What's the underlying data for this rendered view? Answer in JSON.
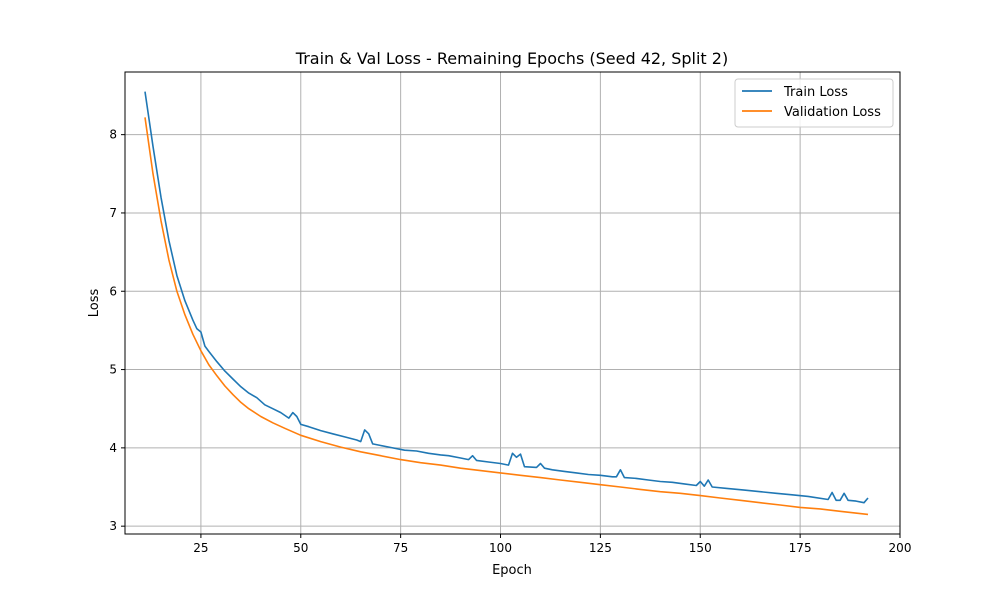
{
  "chart_data": {
    "type": "line",
    "title": "Train & Val Loss - Remaining Epochs (Seed 42, Split 2)",
    "xlabel": "Epoch",
    "ylabel": "Loss",
    "xlim": [
      6,
      200
    ],
    "ylim": [
      2.9,
      8.8
    ],
    "xticks": [
      25,
      50,
      75,
      100,
      125,
      150,
      175,
      200
    ],
    "yticks": [
      3,
      4,
      5,
      6,
      7,
      8
    ],
    "grid": true,
    "legend_position": "top-right",
    "series": [
      {
        "name": "Train Loss",
        "color": "#1f77b4",
        "points": [
          [
            11,
            8.55
          ],
          [
            13,
            7.85
          ],
          [
            15,
            7.2
          ],
          [
            17,
            6.65
          ],
          [
            19,
            6.2
          ],
          [
            21,
            5.88
          ],
          [
            23,
            5.63
          ],
          [
            24,
            5.52
          ],
          [
            25,
            5.48
          ],
          [
            26,
            5.3
          ],
          [
            27,
            5.23
          ],
          [
            29,
            5.1
          ],
          [
            31,
            4.98
          ],
          [
            33,
            4.88
          ],
          [
            35,
            4.78
          ],
          [
            37,
            4.7
          ],
          [
            39,
            4.64
          ],
          [
            41,
            4.55
          ],
          [
            43,
            4.5
          ],
          [
            45,
            4.45
          ],
          [
            47,
            4.38
          ],
          [
            48,
            4.45
          ],
          [
            49,
            4.4
          ],
          [
            50,
            4.3
          ],
          [
            52,
            4.27
          ],
          [
            55,
            4.22
          ],
          [
            58,
            4.18
          ],
          [
            61,
            4.14
          ],
          [
            64,
            4.1
          ],
          [
            65,
            4.08
          ],
          [
            66,
            4.23
          ],
          [
            67,
            4.18
          ],
          [
            68,
            4.05
          ],
          [
            70,
            4.03
          ],
          [
            73,
            4.0
          ],
          [
            76,
            3.97
          ],
          [
            79,
            3.96
          ],
          [
            82,
            3.93
          ],
          [
            85,
            3.91
          ],
          [
            87,
            3.9
          ],
          [
            90,
            3.87
          ],
          [
            92,
            3.85
          ],
          [
            93,
            3.9
          ],
          [
            94,
            3.84
          ],
          [
            97,
            3.82
          ],
          [
            100,
            3.8
          ],
          [
            102,
            3.78
          ],
          [
            103,
            3.93
          ],
          [
            104,
            3.88
          ],
          [
            105,
            3.92
          ],
          [
            106,
            3.76
          ],
          [
            109,
            3.75
          ],
          [
            110,
            3.8
          ],
          [
            111,
            3.74
          ],
          [
            113,
            3.72
          ],
          [
            116,
            3.7
          ],
          [
            119,
            3.68
          ],
          [
            122,
            3.66
          ],
          [
            125,
            3.65
          ],
          [
            128,
            3.63
          ],
          [
            129,
            3.63
          ],
          [
            130,
            3.72
          ],
          [
            131,
            3.62
          ],
          [
            134,
            3.61
          ],
          [
            137,
            3.59
          ],
          [
            140,
            3.57
          ],
          [
            143,
            3.56
          ],
          [
            146,
            3.54
          ],
          [
            149,
            3.52
          ],
          [
            150,
            3.57
          ],
          [
            151,
            3.51
          ],
          [
            152,
            3.59
          ],
          [
            153,
            3.5
          ],
          [
            157,
            3.48
          ],
          [
            161,
            3.46
          ],
          [
            165,
            3.44
          ],
          [
            169,
            3.42
          ],
          [
            173,
            3.4
          ],
          [
            177,
            3.38
          ],
          [
            182,
            3.34
          ],
          [
            183,
            3.43
          ],
          [
            184,
            3.33
          ],
          [
            185,
            3.33
          ],
          [
            186,
            3.42
          ],
          [
            187,
            3.33
          ],
          [
            189,
            3.32
          ],
          [
            191,
            3.3
          ],
          [
            192,
            3.36
          ]
        ]
      },
      {
        "name": "Validation Loss",
        "color": "#ff7f0e",
        "points": [
          [
            11,
            8.22
          ],
          [
            13,
            7.5
          ],
          [
            15,
            6.9
          ],
          [
            17,
            6.4
          ],
          [
            19,
            6.0
          ],
          [
            21,
            5.7
          ],
          [
            23,
            5.45
          ],
          [
            25,
            5.24
          ],
          [
            27,
            5.06
          ],
          [
            29,
            4.92
          ],
          [
            31,
            4.79
          ],
          [
            33,
            4.68
          ],
          [
            35,
            4.58
          ],
          [
            37,
            4.5
          ],
          [
            40,
            4.4
          ],
          [
            43,
            4.32
          ],
          [
            46,
            4.25
          ],
          [
            50,
            4.16
          ],
          [
            55,
            4.08
          ],
          [
            60,
            4.01
          ],
          [
            65,
            3.95
          ],
          [
            70,
            3.9
          ],
          [
            75,
            3.85
          ],
          [
            80,
            3.81
          ],
          [
            85,
            3.78
          ],
          [
            90,
            3.74
          ],
          [
            95,
            3.71
          ],
          [
            100,
            3.68
          ],
          [
            105,
            3.65
          ],
          [
            110,
            3.62
          ],
          [
            115,
            3.59
          ],
          [
            120,
            3.56
          ],
          [
            125,
            3.53
          ],
          [
            130,
            3.5
          ],
          [
            135,
            3.47
          ],
          [
            140,
            3.44
          ],
          [
            145,
            3.42
          ],
          [
            150,
            3.39
          ],
          [
            155,
            3.36
          ],
          [
            160,
            3.33
          ],
          [
            165,
            3.3
          ],
          [
            170,
            3.27
          ],
          [
            175,
            3.24
          ],
          [
            180,
            3.22
          ],
          [
            185,
            3.19
          ],
          [
            192,
            3.15
          ]
        ]
      }
    ]
  }
}
